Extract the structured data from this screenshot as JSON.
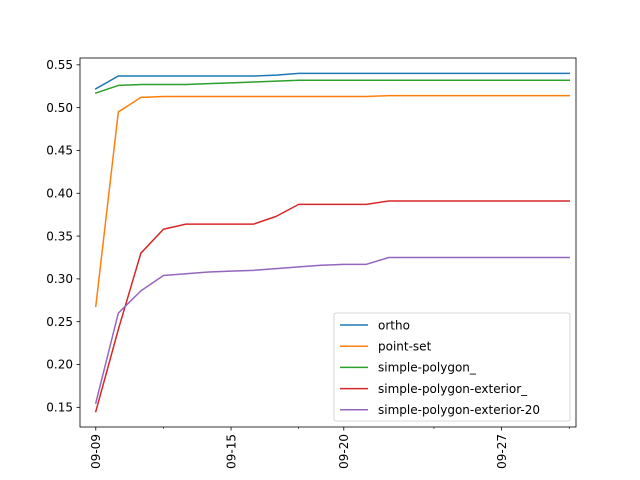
{
  "chart_data": {
    "type": "line",
    "title": "",
    "xlabel": "",
    "ylabel": "",
    "x": [
      "09-09",
      "09-10",
      "09-11",
      "09-12",
      "09-13",
      "09-14",
      "09-15",
      "09-16",
      "09-17",
      "09-18",
      "09-19",
      "09-20",
      "09-21",
      "09-22",
      "09-23",
      "09-24",
      "09-25",
      "09-26",
      "09-27",
      "09-28",
      "09-29",
      "09-30"
    ],
    "xticks": [
      "09-09",
      "09-15",
      "09-20",
      "09-27"
    ],
    "xticks_minor": [
      "09-12",
      "09-18",
      "09-24",
      "09-30"
    ],
    "xlim": [
      "09-09",
      "09-30"
    ],
    "ylim": [
      0.127,
      0.558
    ],
    "yticks": [
      0.15,
      0.2,
      0.25,
      0.3,
      0.35,
      0.4,
      0.45,
      0.5,
      0.55
    ],
    "ytick_labels": [
      "0.15",
      "0.20",
      "0.25",
      "0.30",
      "0.35",
      "0.40",
      "0.45",
      "0.50",
      "0.55"
    ],
    "grid": false,
    "legend_position": "lower right",
    "series": [
      {
        "name": "ortho",
        "color": "#1f77b4",
        "values": [
          0.522,
          0.537,
          0.537,
          0.537,
          0.537,
          0.537,
          0.537,
          0.537,
          0.538,
          0.54,
          0.54,
          0.54,
          0.54,
          0.54,
          0.54,
          0.54,
          0.54,
          0.54,
          0.54,
          0.54,
          0.54,
          0.54
        ]
      },
      {
        "name": "point-set",
        "color": "#ff7f0e",
        "values": [
          0.268,
          0.495,
          0.512,
          0.513,
          0.513,
          0.513,
          0.513,
          0.513,
          0.513,
          0.513,
          0.513,
          0.513,
          0.513,
          0.514,
          0.514,
          0.514,
          0.514,
          0.514,
          0.514,
          0.514,
          0.514,
          0.514
        ]
      },
      {
        "name": "simple-polygon_",
        "color": "#2ca02c",
        "values": [
          0.517,
          0.526,
          0.527,
          0.527,
          0.527,
          0.528,
          0.529,
          0.53,
          0.531,
          0.532,
          0.532,
          0.532,
          0.532,
          0.532,
          0.532,
          0.532,
          0.532,
          0.532,
          0.532,
          0.532,
          0.532,
          0.532
        ]
      },
      {
        "name": "simple-polygon-exterior_",
        "color": "#d62728",
        "values": [
          0.145,
          0.241,
          0.33,
          0.358,
          0.364,
          0.364,
          0.364,
          0.364,
          0.373,
          0.387,
          0.387,
          0.387,
          0.387,
          0.391,
          0.391,
          0.391,
          0.391,
          0.391,
          0.391,
          0.391,
          0.391,
          0.391
        ]
      },
      {
        "name": "simple-polygon-exterior-20",
        "color": "#9467bd",
        "values": [
          0.155,
          0.26,
          0.286,
          0.304,
          0.306,
          0.308,
          0.309,
          0.31,
          0.312,
          0.314,
          0.316,
          0.317,
          0.317,
          0.325,
          0.325,
          0.325,
          0.325,
          0.325,
          0.325,
          0.325,
          0.325,
          0.325
        ]
      }
    ]
  }
}
